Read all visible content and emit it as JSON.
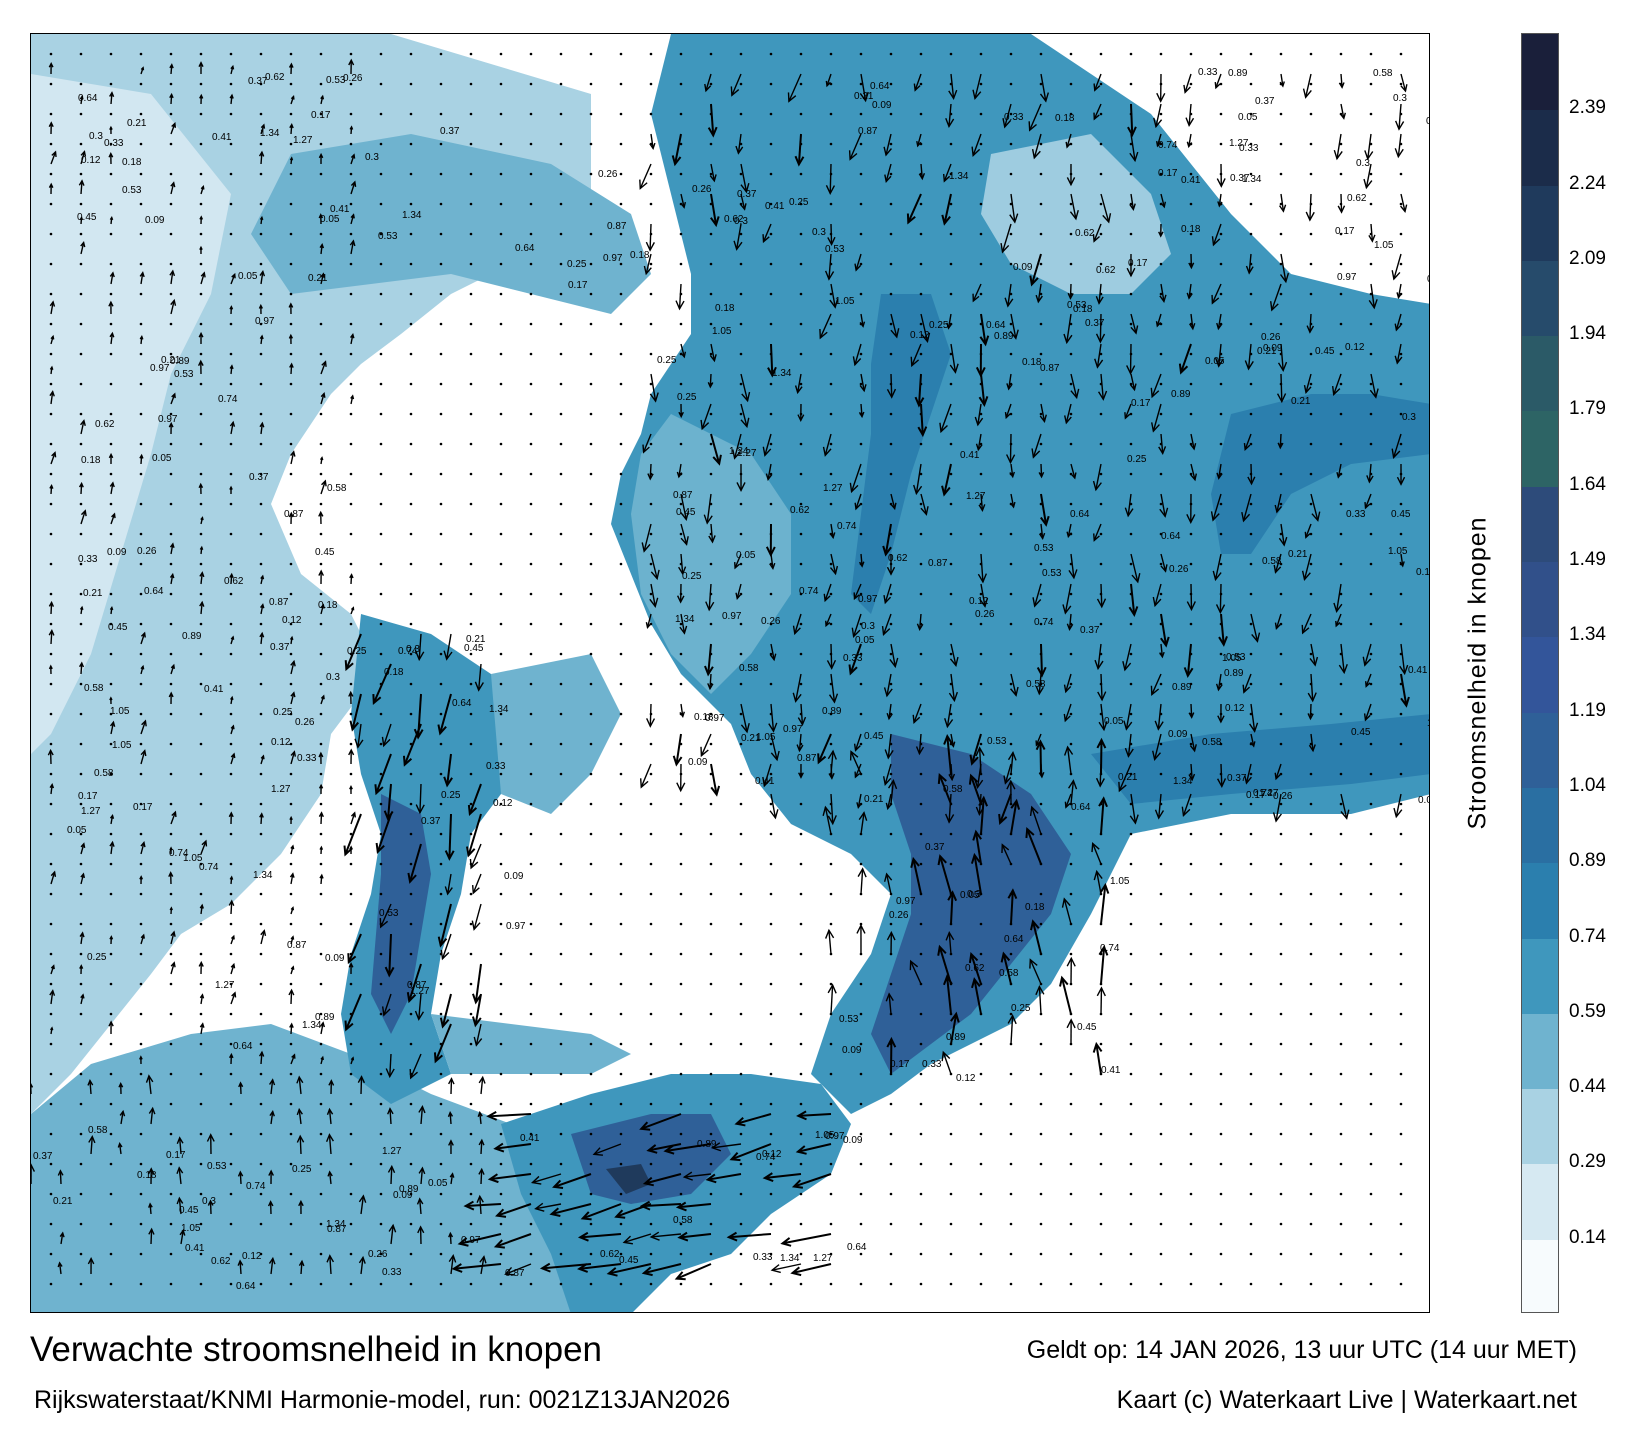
{
  "map": {
    "title": "Verwachte stroomsnelheid in knopen",
    "source": "Rijkswaterstaat/KNMI Harmonie-model, run: 0021Z13JAN2026",
    "valid_time": "Geldt op: 14 JAN 2026, 13 uur UTC (14 uur MET)",
    "credit": "Kaart (c) Waterkaart Live | Waterkaart.net",
    "colorbar": {
      "title": "Stroomsnelheid in knopen",
      "ticks": [
        "0.14",
        "0.29",
        "0.44",
        "0.59",
        "0.74",
        "0.89",
        "1.04",
        "1.19",
        "1.34",
        "1.49",
        "1.64",
        "1.79",
        "1.94",
        "2.09",
        "2.24",
        "2.39"
      ],
      "colors": [
        "#f7fbfd",
        "#d6e9f2",
        "#a9d2e3",
        "#6fb3cf",
        "#3f97bd",
        "#2b7fae",
        "#2a6fa2",
        "#2f6098",
        "#33559a",
        "#31508a",
        "#2d4b7a",
        "#2d6465",
        "#2b5a67",
        "#264b6b",
        "#1f3a5c",
        "#1b2c4a",
        "#1a1f3a"
      ]
    },
    "sample_values": [
      "0.37",
      "0.18",
      "0.25",
      "0.21",
      "0.53",
      "0.87",
      "1.27",
      "1.34",
      "0.97",
      "0.64",
      "0.45",
      "0.33",
      "0.12",
      "0.09",
      "0.74",
      "0.58",
      "0.41",
      "0.62",
      "0.89",
      "1.05",
      "0.26",
      "0.17",
      "0.05",
      "0.3"
    ]
  }
}
